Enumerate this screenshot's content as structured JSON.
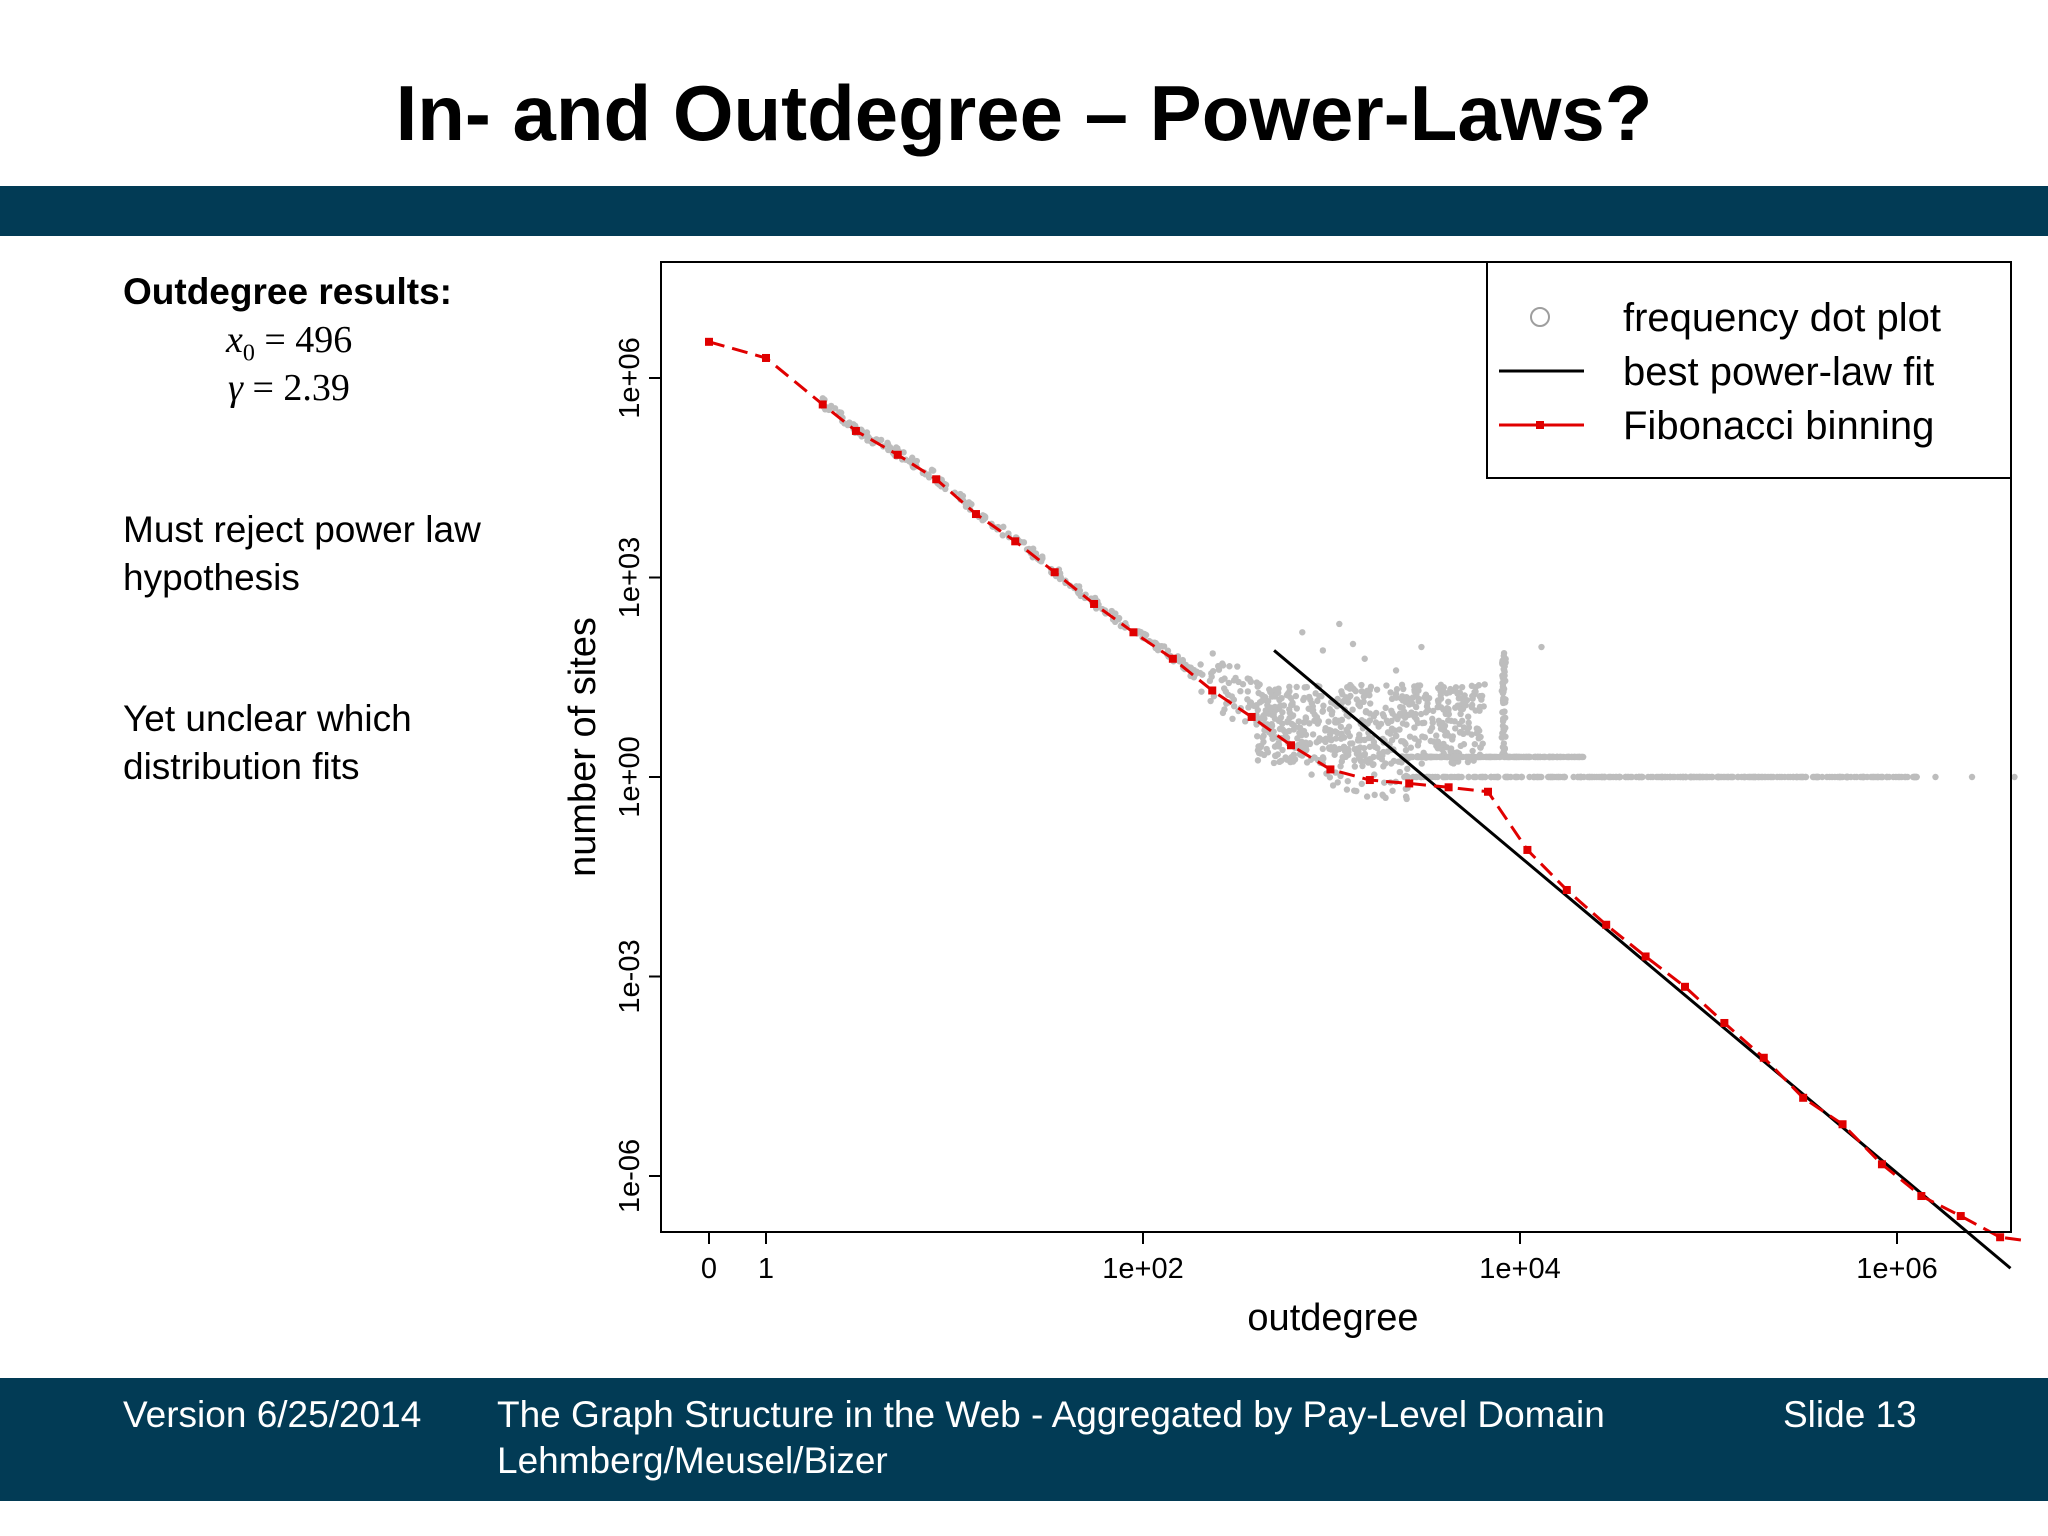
{
  "slide": {
    "title": "In- and Outdegree – Power-Laws?",
    "band_color": "#023b55",
    "results_title": "Outdegree results:",
    "x0_label": "x",
    "x0_sub": "0",
    "x0_eq": "= 496",
    "gamma_label": "γ",
    "gamma_eq": "= 2.39",
    "text1": "Must reject power law hypothesis",
    "text2": "Yet unclear which distribution fits"
  },
  "footer": {
    "version": "Version 6/25/2014",
    "title": "The Graph Structure in the Web - Aggregated by Pay-Level Domain",
    "authors": "Lehmberg/Meusel/Bizer",
    "slide": "Slide 13",
    "color": "#023b55"
  },
  "chart_data": {
    "type": "scatter",
    "title": "",
    "xlabel": "outdegree",
    "ylabel": "number of sites",
    "xscale": "log (with 0 shown)",
    "yscale": "log",
    "x_ticks": [
      "0",
      "1",
      "1e+02",
      "1e+04",
      "1e+06"
    ],
    "y_ticks": [
      "1e-06",
      "1e-03",
      "1e+00",
      "1e+03",
      "1e+06"
    ],
    "xlim": [
      0,
      10000000
    ],
    "ylim": [
      7e-08,
      40000000
    ],
    "grid": false,
    "legend_position": "top-right",
    "legend": [
      "frequency dot plot",
      "best power-law fit",
      "Fibonacci binning"
    ],
    "colors": {
      "dots": "#bdbdbd",
      "fit": "#000000",
      "binning": "#e00000"
    },
    "series": [
      {
        "name": "Fibonacci binning",
        "x": [
          0,
          1,
          2,
          3,
          5,
          8,
          13,
          21,
          34,
          55,
          89,
          144,
          233,
          377,
          610,
          987,
          1597,
          2584,
          4181,
          6765,
          10946,
          17711,
          28657,
          46368,
          75025,
          121393,
          196418,
          317811,
          514229,
          832040,
          1346269,
          2178309,
          3524578,
          5702887
        ],
        "y": [
          3500000,
          2000000,
          400000,
          160000,
          70000,
          30000,
          9000,
          3500,
          1200,
          400,
          150,
          60,
          20,
          8,
          3,
          1.3,
          0.9,
          0.8,
          0.7,
          0.6,
          0.08,
          0.02,
          0.006,
          0.002,
          0.0007,
          0.0002,
          6e-05,
          1.5e-05,
          6e-06,
          1.5e-06,
          5e-07,
          2.5e-07,
          1.2e-07,
          1e-07
        ]
      },
      {
        "name": "best power-law fit",
        "x": [
          496,
          4000000
        ],
        "y": [
          80,
          4.1e-08
        ]
      }
    ],
    "frequency_dots_description_values": {
      "main_band_x": [
        300,
        1600
      ],
      "main_band_y": [
        0.5,
        500
      ],
      "spikes_x": [
        1000,
        3000,
        8000,
        13000
      ],
      "spikes_y": [
        200,
        80,
        100,
        15
      ]
    }
  }
}
